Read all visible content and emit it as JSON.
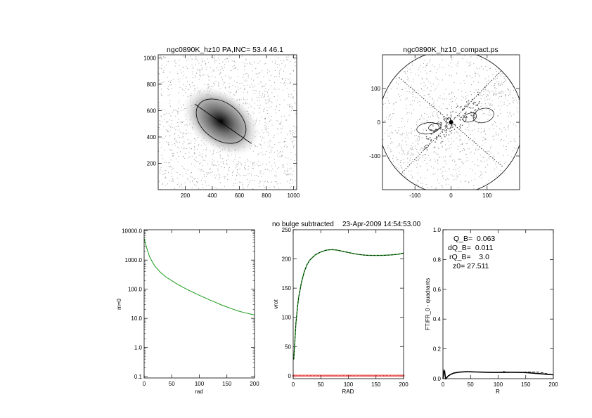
{
  "header": {
    "status": "no bulge subtracted",
    "timestamp": "23-Apr-2009 14:54:53.00"
  },
  "colors": {
    "green": "#1a9a1a",
    "red": "#e02020",
    "gray": "#8a8a8a",
    "black": "#000000"
  },
  "chart_data": [
    {
      "id": "image",
      "type": "heatmap",
      "title": "ngc0890K_hz10 PA,INC= 53.4 46.1",
      "xlim": [
        0,
        1024
      ],
      "ylim": [
        0,
        1024
      ],
      "x_ticks": [
        200,
        400,
        600,
        800,
        1000
      ],
      "y_ticks": [
        200,
        400,
        600,
        800,
        1000
      ],
      "x_tick_labels": [
        "200",
        "400",
        "600",
        "800",
        "1000"
      ],
      "y_tick_labels": [
        "200",
        "400",
        "600",
        "800",
        "1000"
      ],
      "center": [
        465,
        520
      ],
      "ellipse": {
        "semi_major": 205,
        "semi_minor": 140,
        "pa_deg": 53.4
      },
      "major_axis_ends": [
        [
          270,
          650
        ],
        [
          690,
          350
        ]
      ]
    },
    {
      "id": "compact",
      "type": "heatmap",
      "title": "ngc0890K_hz10_compact.ps",
      "xlim": [
        -190,
        190
      ],
      "ylim": [
        -200,
        200
      ],
      "x_ticks": [
        -100,
        0,
        100
      ],
      "y_ticks": [
        -100,
        0,
        100
      ],
      "x_tick_labels": [
        "-100",
        "0",
        "100"
      ],
      "y_tick_labels": [
        "-100",
        "0",
        "100"
      ],
      "circle_radius": 200
    },
    {
      "id": "mode",
      "type": "line",
      "title": "",
      "xlabel": "rad",
      "ylabel": "m=0",
      "xlim": [
        0,
        200
      ],
      "ylim": [
        0.09,
        11000
      ],
      "log_y": true,
      "x_ticks": [
        0,
        50,
        100,
        150,
        200
      ],
      "x_tick_labels": [
        "0",
        "50",
        "100",
        "150",
        "200"
      ],
      "y_ticks": [
        0.1,
        1,
        10,
        100,
        1000,
        10000
      ],
      "y_tick_labels": [
        "0.1",
        "1.0",
        "10.0",
        "100.0",
        "1000.0",
        "10000.0"
      ],
      "series": [
        {
          "x": [
            0,
            2,
            5,
            10,
            15,
            20,
            30,
            40,
            50,
            60,
            70,
            80,
            90,
            100,
            110,
            120,
            130,
            140,
            150,
            160,
            170,
            180,
            190,
            200
          ],
          "y": [
            5500,
            4000,
            2500,
            1300,
            850,
            600,
            370,
            260,
            195,
            150,
            118,
            94,
            76,
            62,
            51,
            42,
            35,
            29,
            24.5,
            21,
            18,
            16,
            14.5,
            13
          ]
        }
      ]
    },
    {
      "id": "vrot",
      "type": "line",
      "title": "",
      "xlabel": "RAD",
      "ylabel": "vrot",
      "xlim": [
        0,
        200
      ],
      "ylim": [
        -5,
        250
      ],
      "x_ticks": [
        0,
        50,
        100,
        150,
        200
      ],
      "x_tick_labels": [
        "0",
        "50",
        "100",
        "150",
        "200"
      ],
      "y_ticks": [
        0,
        50,
        100,
        150,
        200,
        250
      ],
      "y_tick_labels": [
        "0",
        "50",
        "100",
        "150",
        "200",
        "250"
      ],
      "series": [
        {
          "x": [
            1,
            3,
            5,
            8,
            10,
            15,
            20,
            25,
            30,
            40,
            50,
            60,
            70,
            80,
            90,
            100,
            110,
            120,
            130,
            140,
            150,
            160,
            170,
            180,
            190,
            200
          ],
          "y": [
            28,
            60,
            90,
            120,
            135,
            160,
            178,
            190,
            198,
            207,
            212,
            215,
            216,
            215,
            213,
            211,
            209,
            207.5,
            206.5,
            206,
            206,
            206,
            206.5,
            207,
            208,
            210
          ]
        }
      ],
      "baseline": {
        "x_start": 0,
        "x_end": 200,
        "y": 0,
        "step": 2.5
      }
    },
    {
      "id": "ftfr",
      "type": "line",
      "title": "",
      "xlabel": "R",
      "ylabel": "FT/FR_0 - quadrants",
      "xlim": [
        0,
        200
      ],
      "ylim": [
        0,
        1.0
      ],
      "x_ticks": [
        0,
        50,
        100,
        150,
        200
      ],
      "x_tick_labels": [
        "0",
        "50",
        "100",
        "150",
        "200"
      ],
      "y_ticks": [
        0,
        0.2,
        0.4,
        0.6,
        0.8,
        1.0
      ],
      "y_tick_labels": [
        "0.0",
        "0.2",
        "0.4",
        "0.6",
        "0.8",
        "1.0"
      ],
      "annotations": [
        "Q_B=  0.063",
        "dQ_B=  0.011",
        "rQ_B=    3.0",
        "z0= 27.511"
      ],
      "series": [
        {
          "x": [
            0,
            1,
            2,
            3,
            4,
            5,
            6,
            8,
            10,
            15,
            20,
            30,
            40,
            50,
            60,
            70,
            80,
            90,
            100,
            110,
            120,
            130,
            140,
            150,
            160,
            170,
            180,
            190,
            200
          ],
          "y": [
            0.0,
            0.03,
            0.055,
            0.05,
            0.02,
            0.0,
            0.003,
            0.012,
            0.02,
            0.03,
            0.038,
            0.044,
            0.046,
            0.046,
            0.045,
            0.044,
            0.043,
            0.042,
            0.042,
            0.042,
            0.043,
            0.043,
            0.042,
            0.041,
            0.038,
            0.035,
            0.032,
            0.029,
            0.026
          ]
        }
      ]
    }
  ]
}
